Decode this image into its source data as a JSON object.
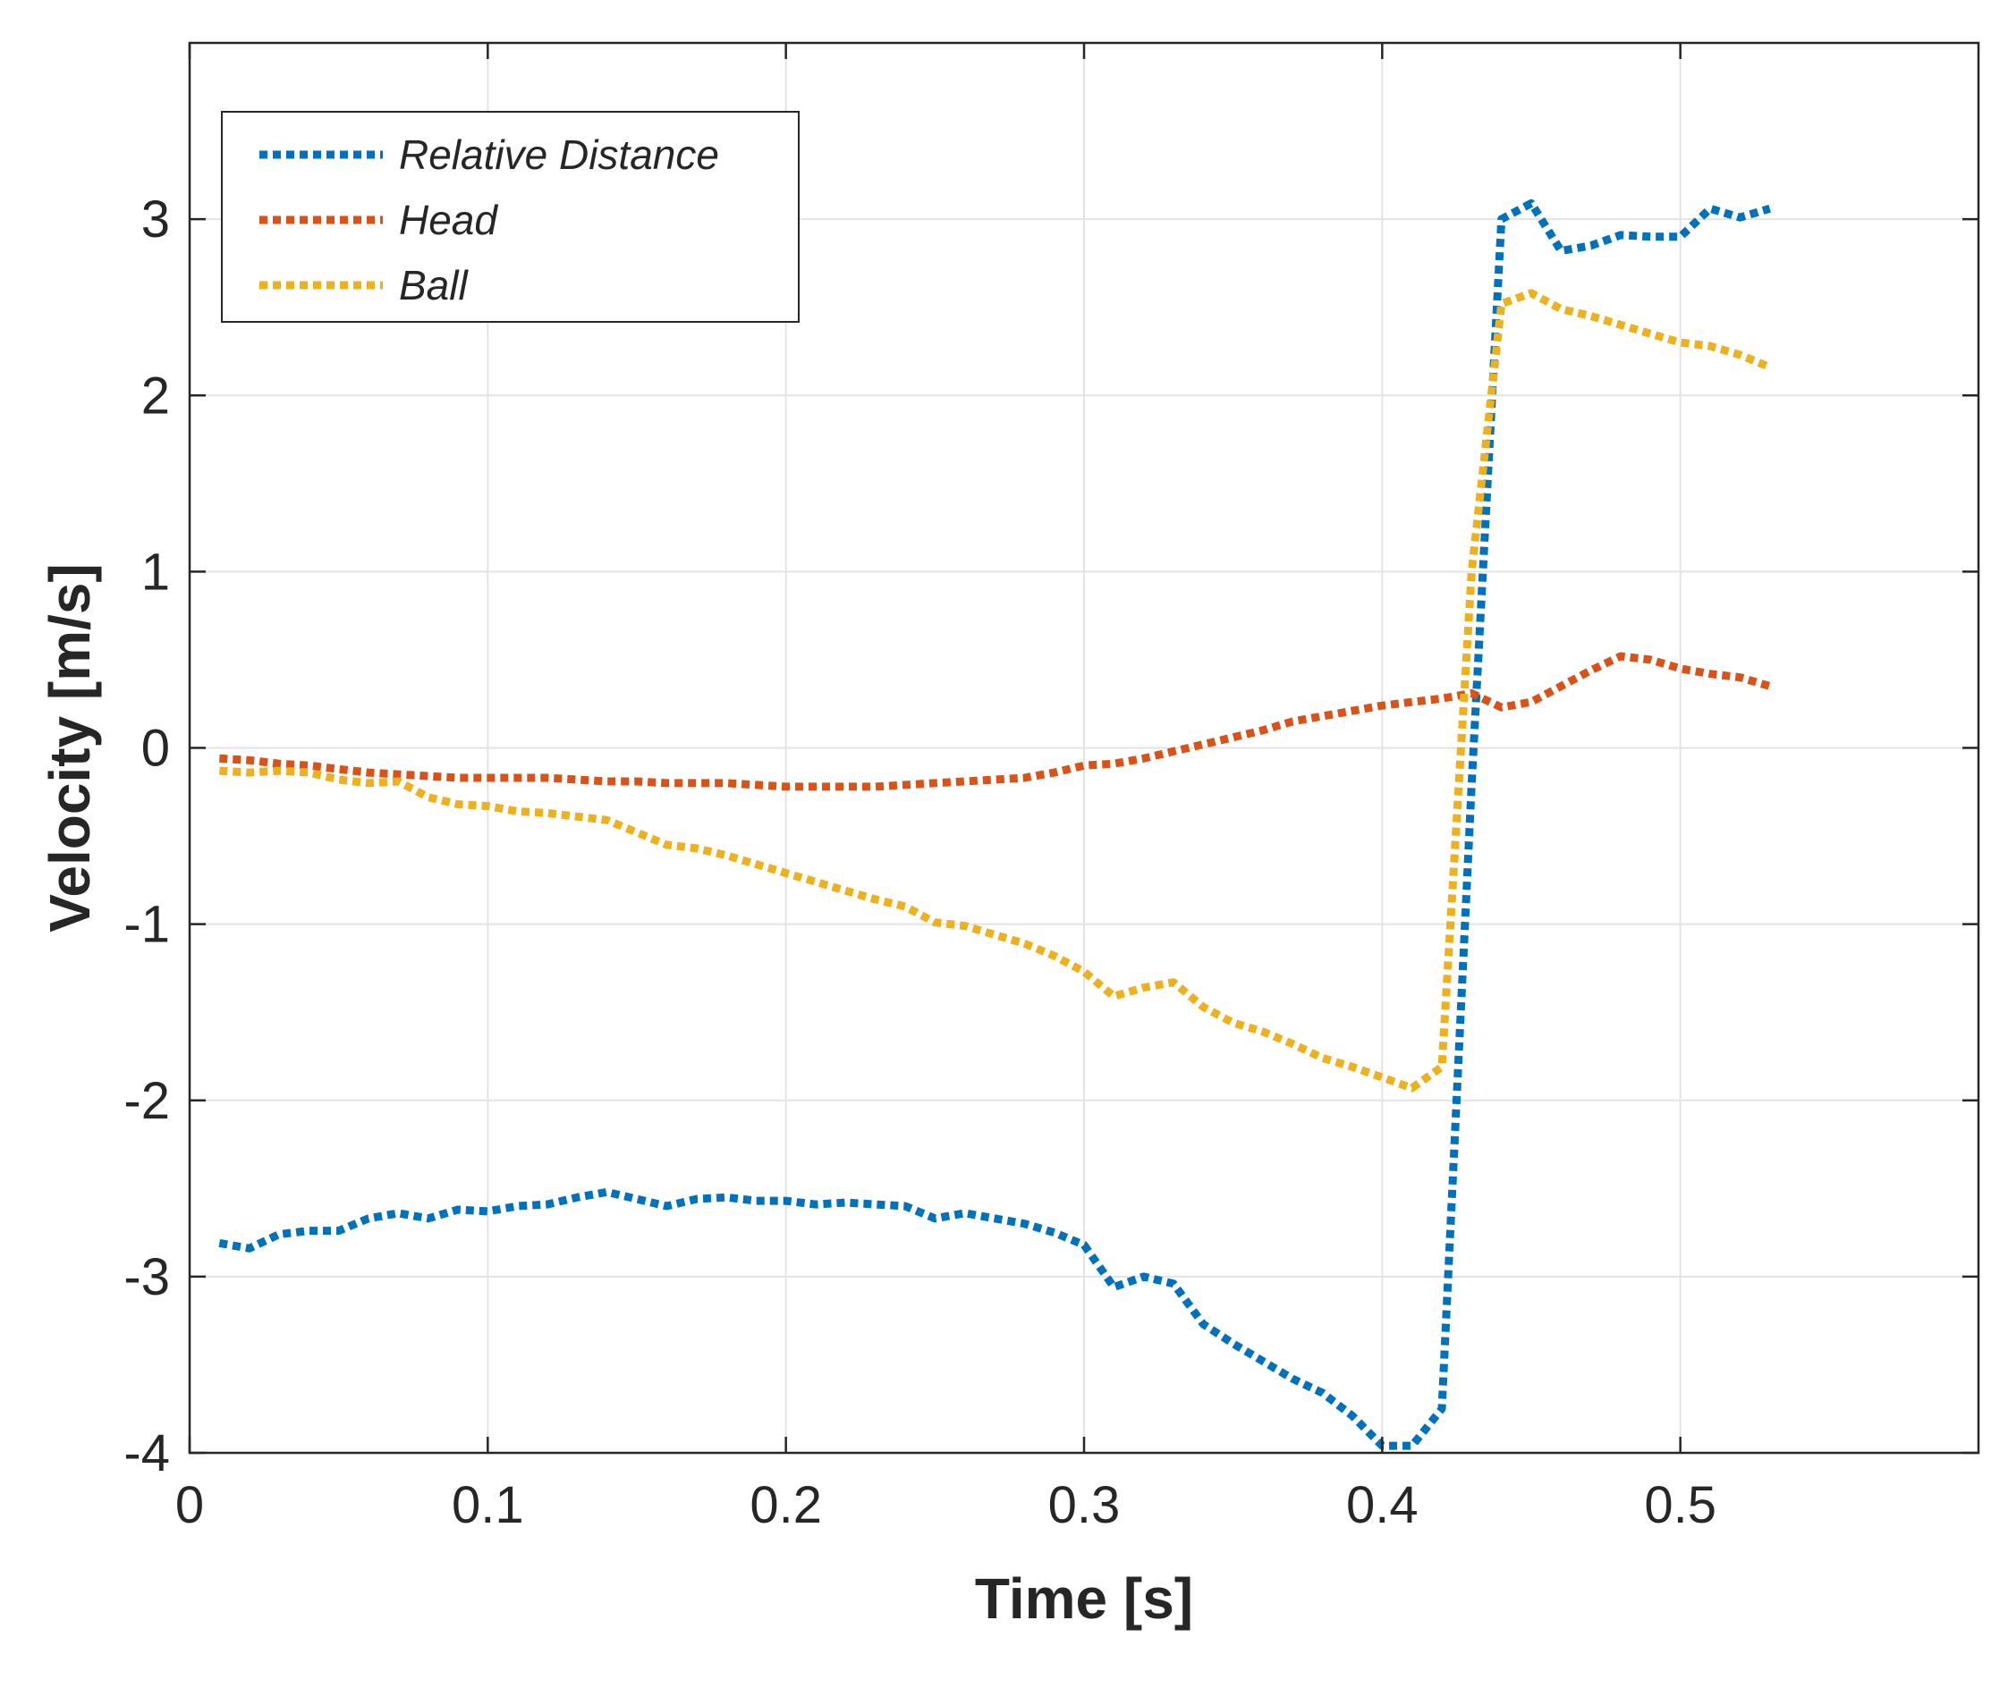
{
  "chart_data": {
    "type": "line",
    "title": "",
    "xlabel": "Time [s]",
    "ylabel": "Velocity [m/s]",
    "xlim": [
      0,
      0.6
    ],
    "ylim": [
      -4,
      4
    ],
    "xticks": [
      0,
      0.1,
      0.2,
      0.3,
      0.4,
      0.5
    ],
    "xtick_labels": [
      "0",
      "0.1",
      "0.2",
      "0.3",
      "0.4",
      "0.5"
    ],
    "yticks": [
      -4,
      -3,
      -2,
      -1,
      0,
      1,
      2,
      3
    ],
    "ytick_labels": [
      "-4",
      "-3",
      "-2",
      "-1",
      "0",
      "1",
      "2",
      "3"
    ],
    "grid": true,
    "legend_position": "top-left",
    "series": [
      {
        "name": "Relative Distance",
        "color": "#0072BD",
        "style": "dotted",
        "x": [
          0.01,
          0.02,
          0.03,
          0.04,
          0.05,
          0.06,
          0.07,
          0.08,
          0.09,
          0.1,
          0.11,
          0.12,
          0.13,
          0.14,
          0.15,
          0.16,
          0.17,
          0.18,
          0.19,
          0.2,
          0.21,
          0.22,
          0.23,
          0.24,
          0.25,
          0.26,
          0.27,
          0.28,
          0.29,
          0.3,
          0.31,
          0.32,
          0.33,
          0.34,
          0.35,
          0.36,
          0.37,
          0.38,
          0.39,
          0.4,
          0.41,
          0.42,
          0.43,
          0.44,
          0.45,
          0.46,
          0.47,
          0.48,
          0.49,
          0.5,
          0.51,
          0.52,
          0.53
        ],
        "y": [
          -2.81,
          -2.84,
          -2.76,
          -2.74,
          -2.74,
          -2.67,
          -2.64,
          -2.67,
          -2.62,
          -2.63,
          -2.6,
          -2.59,
          -2.55,
          -2.52,
          -2.56,
          -2.6,
          -2.56,
          -2.55,
          -2.57,
          -2.57,
          -2.59,
          -2.58,
          -2.59,
          -2.6,
          -2.67,
          -2.64,
          -2.67,
          -2.7,
          -2.75,
          -2.82,
          -3.06,
          -3.0,
          -3.04,
          -3.27,
          -3.38,
          -3.48,
          -3.58,
          -3.66,
          -3.79,
          -3.96,
          -3.96,
          -3.75,
          -0.21,
          3.0,
          3.09,
          2.82,
          2.85,
          2.91,
          2.9,
          2.9,
          3.06,
          3.01,
          3.06
        ]
      },
      {
        "name": "Head",
        "color": "#D95319",
        "style": "dotted",
        "x": [
          0.01,
          0.02,
          0.03,
          0.04,
          0.05,
          0.06,
          0.07,
          0.08,
          0.09,
          0.1,
          0.11,
          0.12,
          0.13,
          0.14,
          0.15,
          0.16,
          0.17,
          0.18,
          0.19,
          0.2,
          0.21,
          0.22,
          0.23,
          0.24,
          0.25,
          0.26,
          0.27,
          0.28,
          0.29,
          0.3,
          0.31,
          0.32,
          0.33,
          0.34,
          0.35,
          0.36,
          0.37,
          0.38,
          0.39,
          0.4,
          0.41,
          0.42,
          0.43,
          0.44,
          0.45,
          0.46,
          0.47,
          0.48,
          0.49,
          0.5,
          0.51,
          0.52,
          0.53
        ],
        "y": [
          -0.06,
          -0.07,
          -0.09,
          -0.1,
          -0.12,
          -0.14,
          -0.15,
          -0.16,
          -0.17,
          -0.17,
          -0.17,
          -0.17,
          -0.18,
          -0.19,
          -0.19,
          -0.2,
          -0.2,
          -0.2,
          -0.21,
          -0.22,
          -0.22,
          -0.22,
          -0.22,
          -0.21,
          -0.2,
          -0.19,
          -0.18,
          -0.17,
          -0.14,
          -0.1,
          -0.09,
          -0.06,
          -0.02,
          0.02,
          0.06,
          0.1,
          0.15,
          0.18,
          0.21,
          0.24,
          0.26,
          0.28,
          0.31,
          0.23,
          0.26,
          0.35,
          0.44,
          0.52,
          0.5,
          0.45,
          0.42,
          0.4,
          0.35
        ]
      },
      {
        "name": "Ball",
        "color": "#EDB120",
        "style": "dotted",
        "x": [
          0.01,
          0.02,
          0.03,
          0.04,
          0.05,
          0.06,
          0.07,
          0.08,
          0.09,
          0.1,
          0.11,
          0.12,
          0.13,
          0.14,
          0.15,
          0.16,
          0.17,
          0.18,
          0.19,
          0.2,
          0.21,
          0.22,
          0.23,
          0.24,
          0.25,
          0.26,
          0.27,
          0.28,
          0.29,
          0.3,
          0.31,
          0.32,
          0.33,
          0.34,
          0.35,
          0.36,
          0.37,
          0.38,
          0.39,
          0.4,
          0.41,
          0.42,
          0.43,
          0.44,
          0.45,
          0.46,
          0.47,
          0.48,
          0.49,
          0.5,
          0.51,
          0.52,
          0.53
        ],
        "y": [
          -0.13,
          -0.14,
          -0.13,
          -0.14,
          -0.18,
          -0.2,
          -0.19,
          -0.28,
          -0.32,
          -0.33,
          -0.36,
          -0.37,
          -0.39,
          -0.41,
          -0.48,
          -0.55,
          -0.57,
          -0.61,
          -0.66,
          -0.71,
          -0.76,
          -0.81,
          -0.86,
          -0.9,
          -0.99,
          -1.01,
          -1.06,
          -1.11,
          -1.18,
          -1.27,
          -1.41,
          -1.36,
          -1.33,
          -1.47,
          -1.56,
          -1.61,
          -1.68,
          -1.76,
          -1.81,
          -1.87,
          -1.93,
          -1.81,
          1.0,
          2.52,
          2.58,
          2.49,
          2.45,
          2.4,
          2.35,
          2.3,
          2.28,
          2.23,
          2.16
        ]
      }
    ]
  }
}
